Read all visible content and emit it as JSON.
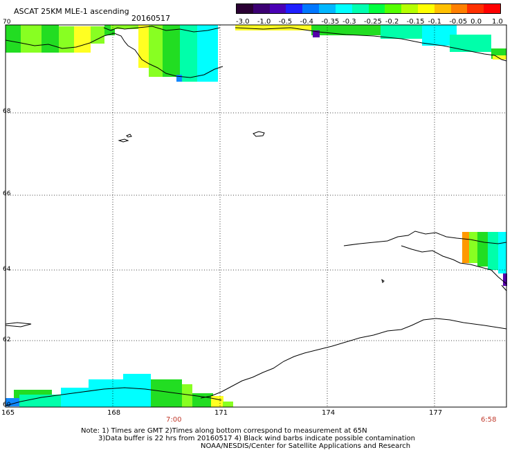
{
  "title": "ASCAT 25KM MLE-1 ascending",
  "date": "20160517",
  "colorbar": {
    "labels": [
      "-3.0",
      "-1.0",
      "-0.5",
      "-0.4",
      "-0.35",
      "-0.3",
      "-0.25",
      "-0.2",
      "-0.15",
      "-0.1",
      "-0.05",
      "0.0",
      "1.0"
    ],
    "colors": [
      "#2a0033",
      "#3c0073",
      "#4a00b5",
      "#1f1fff",
      "#0077ff",
      "#00b7ff",
      "#00ffff",
      "#00ffb0",
      "#00ff40",
      "#55ff00",
      "#b5ff00",
      "#ffff00",
      "#ffc000",
      "#ff8000",
      "#ff3000",
      "#ff0000"
    ]
  },
  "lat_labels": [
    "70",
    "68",
    "66",
    "64",
    "62",
    "60"
  ],
  "lon_labels": [
    "165",
    "168",
    "171",
    "174",
    "177"
  ],
  "time_labels": [
    "7:00",
    "6:58"
  ],
  "notes": {
    "line1": "Note: 1) Times are GMT 2)Times along bottom correspond to measurement at 65N",
    "line2": "3)Data buffer is 22 hrs from 20160517 4) Black wind barbs indicate possible contamination",
    "line3": "NOAA/NESDIS/Center for Satellite Applications and Research"
  },
  "swath_colors": {
    "green": "#22dd22",
    "lime": "#88ff22",
    "cyan": "#00ffff",
    "teal": "#00ffaa",
    "yellow": "#ffff22",
    "blue": "#1188ff",
    "purple": "#5500aa",
    "orange": "#ff9900"
  }
}
